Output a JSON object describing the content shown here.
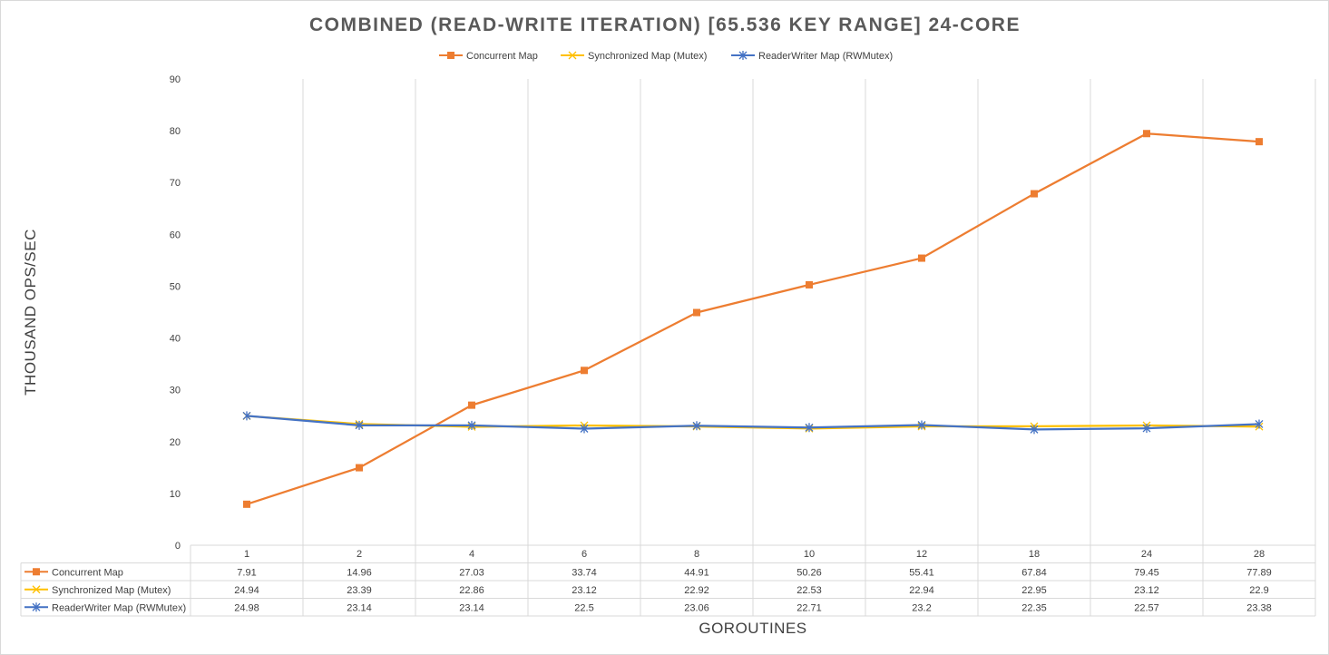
{
  "chart_data": {
    "type": "line",
    "title": "COMBINED (READ-WRITE ITERATION) [65.536 KEY RANGE] 24-CORE",
    "xlabel": "GOROUTINES",
    "ylabel": "THOUSAND OPS/SEC",
    "ylim": [
      0,
      90
    ],
    "y_ticks": [
      "0",
      "10",
      "20",
      "30",
      "40",
      "50",
      "60",
      "70",
      "80",
      "90"
    ],
    "grid": true,
    "legend_position": "top",
    "categories": [
      "1",
      "2",
      "4",
      "6",
      "8",
      "10",
      "12",
      "18",
      "24",
      "28"
    ],
    "series": [
      {
        "name": "Concurrent Map",
        "color": "#ed7d31",
        "marker": "square",
        "values": [
          7.91,
          14.96,
          27.03,
          33.74,
          44.91,
          50.26,
          55.41,
          67.84,
          79.45,
          77.89
        ]
      },
      {
        "name": "Synchronized Map (Mutex)",
        "color": "#ffc000",
        "marker": "x",
        "values": [
          24.94,
          23.39,
          22.86,
          23.12,
          22.92,
          22.53,
          22.94,
          22.95,
          23.12,
          22.9
        ]
      },
      {
        "name": "ReaderWriter Map (RWMutex)",
        "color": "#4472c4",
        "marker": "star",
        "values": [
          24.98,
          23.14,
          23.14,
          22.5,
          23.06,
          22.71,
          23.2,
          22.35,
          22.57,
          23.38
        ]
      }
    ],
    "data_table": {
      "rows": [
        [
          "7.91",
          "14.96",
          "27.03",
          "33.74",
          "44.91",
          "50.26",
          "55.41",
          "67.84",
          "79.45",
          "77.89"
        ],
        [
          "24.94",
          "23.39",
          "22.86",
          "23.12",
          "22.92",
          "22.53",
          "22.94",
          "22.95",
          "23.12",
          "22.9"
        ],
        [
          "24.98",
          "23.14",
          "23.14",
          "22.5",
          "23.06",
          "22.71",
          "23.2",
          "22.35",
          "22.57",
          "23.38"
        ]
      ]
    }
  }
}
